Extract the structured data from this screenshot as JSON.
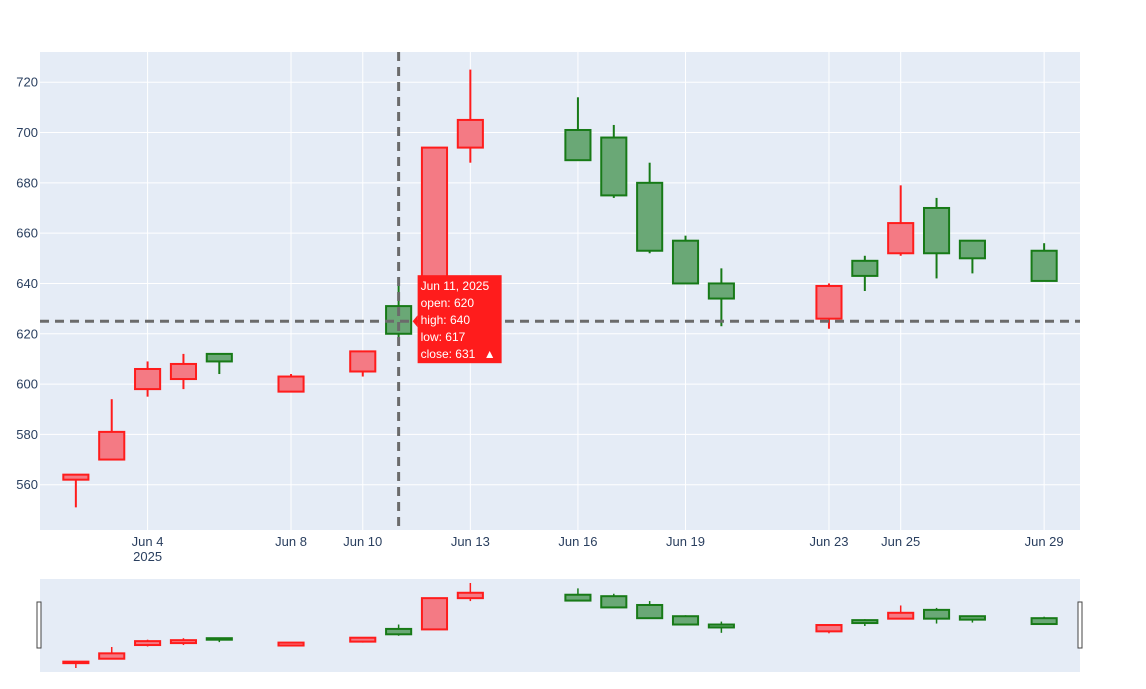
{
  "colors": {
    "increasing": "#177a17",
    "increasing_fill": "#6aa876",
    "decreasing": "#ff1c1c",
    "decreasing_fill": "#f47a84",
    "plot_bg": "#e5ecf6",
    "grid": "#ffffff",
    "crosshair": "#6b6b6b",
    "tooltip_bg": "#ff1c1c"
  },
  "chart_data": {
    "type": "candlestick",
    "title": "",
    "xlabel": "",
    "ylabel": "",
    "grid": true,
    "ylim": [
      542,
      732
    ],
    "x_range": [
      "2025-06-01",
      "2025-06-30"
    ],
    "y_ticks": [
      {
        "value": 560,
        "label": "560"
      },
      {
        "value": 580,
        "label": "580"
      },
      {
        "value": 600,
        "label": "600"
      },
      {
        "value": 620,
        "label": "620"
      },
      {
        "value": 640,
        "label": "640"
      },
      {
        "value": 660,
        "label": "660"
      },
      {
        "value": 680,
        "label": "680"
      },
      {
        "value": 700,
        "label": "700"
      },
      {
        "value": 720,
        "label": "720"
      }
    ],
    "x_ticks": [
      {
        "date": "2025-06-04",
        "label": "Jun 4",
        "sublabel": "2025"
      },
      {
        "date": "2025-06-08",
        "label": "Jun 8"
      },
      {
        "date": "2025-06-10",
        "label": "Jun 10"
      },
      {
        "date": "2025-06-13",
        "label": "Jun 13"
      },
      {
        "date": "2025-06-16",
        "label": "Jun 16"
      },
      {
        "date": "2025-06-19",
        "label": "Jun 19"
      },
      {
        "date": "2025-06-23",
        "label": "Jun 23"
      },
      {
        "date": "2025-06-25",
        "label": "Jun 25"
      },
      {
        "date": "2025-06-29",
        "label": "Jun 29"
      }
    ],
    "candles": [
      {
        "date": "2025-06-02",
        "open": 564,
        "high": 564,
        "low": 551,
        "close": 562
      },
      {
        "date": "2025-06-03",
        "open": 581,
        "high": 594,
        "low": 570,
        "close": 570
      },
      {
        "date": "2025-06-04",
        "open": 606,
        "high": 609,
        "low": 595,
        "close": 598
      },
      {
        "date": "2025-06-05",
        "open": 608,
        "high": 612,
        "low": 598,
        "close": 602
      },
      {
        "date": "2025-06-06",
        "open": 609,
        "high": 612,
        "low": 604,
        "close": 612
      },
      {
        "date": "2025-06-08",
        "open": 603,
        "high": 604,
        "low": 597,
        "close": 597
      },
      {
        "date": "2025-06-10",
        "open": 613,
        "high": 613,
        "low": 603,
        "close": 605
      },
      {
        "date": "2025-06-11",
        "open": 620,
        "high": 640,
        "low": 617,
        "close": 631
      },
      {
        "date": "2025-06-12",
        "open": 694,
        "high": 694,
        "low": 630,
        "close": 630
      },
      {
        "date": "2025-06-13",
        "open": 705,
        "high": 725,
        "low": 688,
        "close": 694
      },
      {
        "date": "2025-06-16",
        "open": 689,
        "high": 714,
        "low": 689,
        "close": 701
      },
      {
        "date": "2025-06-17",
        "open": 675,
        "high": 703,
        "low": 674,
        "close": 698
      },
      {
        "date": "2025-06-18",
        "open": 653,
        "high": 688,
        "low": 652,
        "close": 680
      },
      {
        "date": "2025-06-19",
        "open": 640,
        "high": 659,
        "low": 640,
        "close": 657
      },
      {
        "date": "2025-06-20",
        "open": 634,
        "high": 646,
        "low": 623,
        "close": 640
      },
      {
        "date": "2025-06-23",
        "open": 639,
        "high": 640,
        "low": 622,
        "close": 626
      },
      {
        "date": "2025-06-24",
        "open": 643,
        "high": 651,
        "low": 637,
        "close": 649
      },
      {
        "date": "2025-06-25",
        "open": 664,
        "high": 679,
        "low": 651,
        "close": 652
      },
      {
        "date": "2025-06-26",
        "open": 652,
        "high": 674,
        "low": 642,
        "close": 670
      },
      {
        "date": "2025-06-27",
        "open": 650,
        "high": 657,
        "low": 644,
        "close": 657
      },
      {
        "date": "2025-06-29",
        "open": 641,
        "high": 656,
        "low": 641,
        "close": 653
      }
    ],
    "hover": {
      "date": "2025-06-11",
      "value": 625,
      "lines": [
        "Jun 11, 2025",
        "open: 620",
        "high: 640",
        "low: 617",
        "close: 631"
      ],
      "symbol": "▲"
    },
    "range_slider": true
  }
}
